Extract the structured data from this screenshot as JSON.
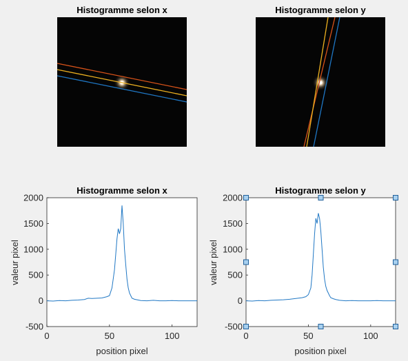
{
  "images": [
    {
      "title": "Histogramme selon x"
    },
    {
      "title": "Histogramme selon y"
    }
  ],
  "colors": {
    "background": "#f0f0f0",
    "axes_bg": "#ffffff",
    "image_bg": "#050505",
    "line_blue": "#1f77c4",
    "line_orange": "#d95319",
    "line_yellow": "#edb120",
    "handle_fill": "#a8d0ef",
    "handle_stroke": "#1f5f9a"
  },
  "icons": {
    "selection_handle": "square-handle-icon"
  },
  "chart_data": [
    {
      "type": "line",
      "title": "Histogramme selon x",
      "xlabel": "position pixel",
      "ylabel": "valeur pixel",
      "xlim": [
        0,
        120
      ],
      "ylim": [
        -500,
        2000
      ],
      "xticks": [
        0,
        50,
        100
      ],
      "yticks": [
        -500,
        0,
        500,
        1000,
        1500,
        2000
      ],
      "grid": false,
      "selected": false,
      "series": [
        {
          "x": [
            0,
            5,
            10,
            15,
            20,
            25,
            30,
            33,
            36,
            40,
            44,
            48,
            50,
            52,
            54,
            55,
            56,
            57,
            58,
            59,
            60,
            61,
            62,
            63,
            64,
            65,
            66,
            67,
            68,
            70,
            72,
            75,
            80,
            85,
            90,
            95,
            100,
            105,
            110,
            115,
            120
          ],
          "y": [
            0,
            -5,
            5,
            0,
            10,
            15,
            25,
            50,
            45,
            50,
            55,
            80,
            100,
            250,
            600,
            900,
            1200,
            1400,
            1300,
            1400,
            1850,
            1500,
            1000,
            700,
            420,
            250,
            150,
            100,
            50,
            30,
            20,
            5,
            0,
            10,
            0,
            0,
            5,
            0,
            0,
            0,
            0
          ]
        }
      ]
    },
    {
      "type": "line",
      "title": "Histogramme selon y",
      "xlabel": "position pixel",
      "ylabel": "valeur pixel",
      "xlim": [
        0,
        120
      ],
      "ylim": [
        -500,
        2000
      ],
      "xticks": [
        0,
        50,
        100
      ],
      "yticks": [
        -500,
        0,
        500,
        1000,
        1500,
        2000
      ],
      "grid": false,
      "selected": true,
      "series": [
        {
          "x": [
            0,
            5,
            10,
            15,
            20,
            25,
            30,
            35,
            40,
            45,
            48,
            50,
            52,
            53,
            54,
            55,
            56,
            57,
            58,
            59,
            60,
            61,
            62,
            63,
            64,
            65,
            66,
            67,
            68,
            70,
            72,
            75,
            80,
            85,
            90,
            95,
            100,
            105,
            110,
            115,
            120
          ],
          "y": [
            0,
            -5,
            5,
            0,
            10,
            15,
            20,
            30,
            45,
            60,
            80,
            120,
            250,
            500,
            900,
            1300,
            1600,
            1500,
            1700,
            1600,
            1350,
            1000,
            650,
            420,
            280,
            200,
            150,
            100,
            60,
            40,
            25,
            10,
            0,
            5,
            0,
            0,
            0,
            5,
            0,
            0,
            0
          ]
        }
      ]
    }
  ]
}
